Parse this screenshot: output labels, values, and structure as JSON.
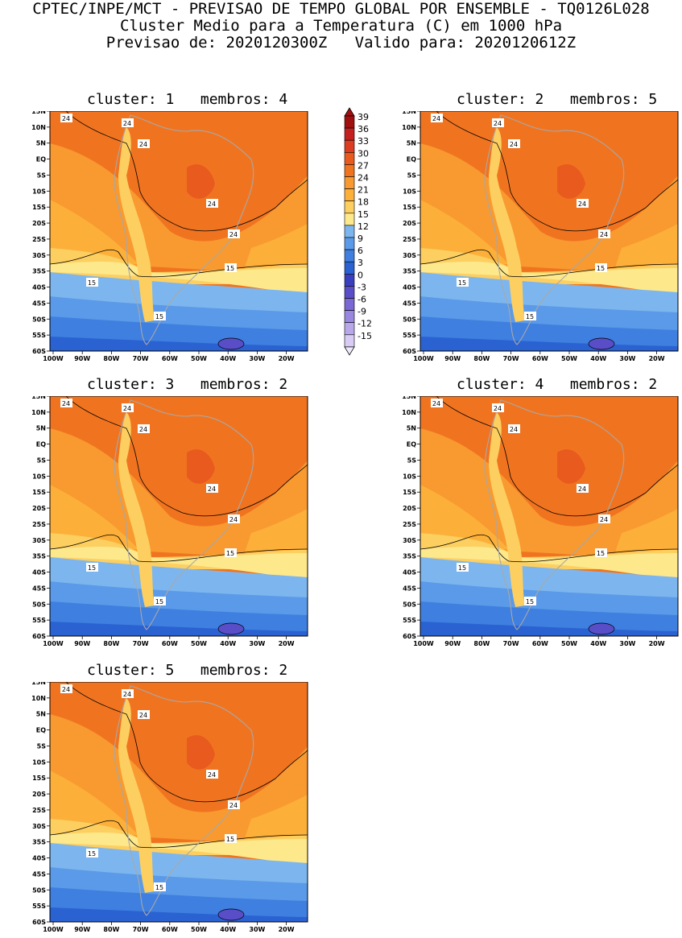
{
  "header": {
    "line1": "CPTEC/INPE/MCT - PREVISAO DE TEMPO GLOBAL POR ENSEMBLE - TQ0126L028",
    "line2": "Cluster Medio para a Temperatura (C) em 1000 hPa",
    "line3": "Previsao de: 2020120300Z   Valido para: 2020120612Z"
  },
  "axes": {
    "lat_labels": [
      "15N",
      "10N",
      "5N",
      "EQ",
      "5S",
      "10S",
      "15S",
      "20S",
      "25S",
      "30S",
      "35S",
      "40S",
      "45S",
      "50S",
      "55S",
      "60S"
    ],
    "lon_labels": [
      "100W",
      "90W",
      "80W",
      "70W",
      "60W",
      "50W",
      "40W",
      "30W",
      "20W"
    ]
  },
  "colorbar": {
    "levels": [
      "39",
      "36",
      "33",
      "30",
      "27",
      "24",
      "21",
      "18",
      "15",
      "12",
      "9",
      "6",
      "3",
      "0",
      "-3",
      "-6",
      "-9",
      "-12",
      "-15"
    ],
    "colors": [
      "#a01010",
      "#c42020",
      "#dc3d20",
      "#e85a1e",
      "#f07420",
      "#f89a30",
      "#fcb03a",
      "#fdcf60",
      "#fde88c",
      "#7db6ee",
      "#5a9ae8",
      "#3f7fe0",
      "#2a62d2",
      "#3a3fc0",
      "#5a4ec8",
      "#7a68d4",
      "#9a88e0",
      "#b8a8ea",
      "#d8ccf4"
    ]
  },
  "panels": [
    {
      "title": "cluster: 1   membros: 4",
      "labels": {
        "l24a": "24",
        "l24b": "24",
        "l24c": "24",
        "l24d": "24",
        "l24e": "24",
        "l15a": "15",
        "l15b": "15",
        "l15c": "15"
      }
    },
    {
      "title": "cluster: 2   membros: 5",
      "labels": {
        "l24a": "24",
        "l24b": "24",
        "l24c": "24",
        "l24d": "24",
        "l24e": "24",
        "l15a": "15",
        "l15b": "15",
        "l15c": "15"
      }
    },
    {
      "title": "cluster: 3   membros: 2",
      "labels": {
        "l24a": "24",
        "l24b": "24",
        "l24c": "24",
        "l24d": "24",
        "l24e": "24",
        "l15a": "15",
        "l15b": "15",
        "l15c": "15"
      }
    },
    {
      "title": "cluster: 4   membros: 2",
      "labels": {
        "l24a": "24",
        "l24b": "24",
        "l24c": "24",
        "l24d": "24",
        "l24e": "24",
        "l15a": "15",
        "l15b": "15",
        "l15c": "15"
      }
    },
    {
      "title": "cluster: 5   membros: 2",
      "labels": {
        "l24a": "24",
        "l24b": "24",
        "l24c": "24",
        "l24d": "24",
        "l24e": "24",
        "l15a": "15",
        "l15b": "15",
        "l15c": "15"
      }
    }
  ]
}
